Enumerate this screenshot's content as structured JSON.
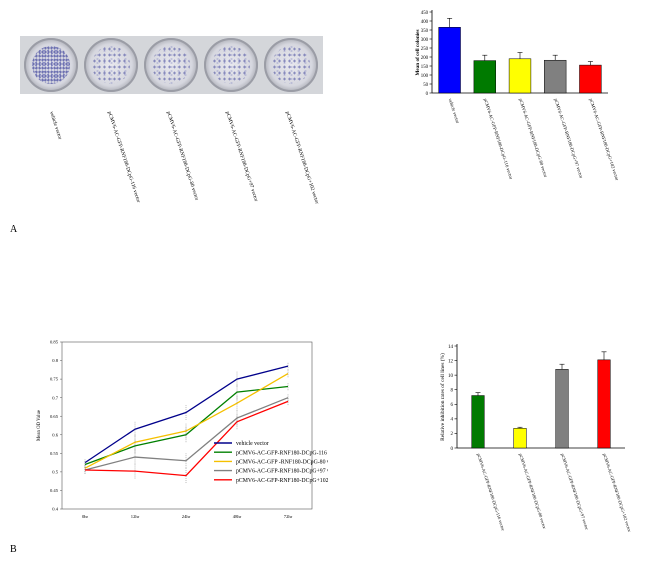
{
  "panel_labels": {
    "a": "A",
    "b": "B"
  },
  "colony_photos": {
    "count": 5,
    "labels": [
      "vehicle vector",
      "pCMV6-AC-GFP-RNF180-DCpG-116 vector",
      "pCMV6-AC-GFP-RNF180-DCpG-80 vector",
      "pCMV6-AC-GFP-RNF180-DCpG+97 vector",
      "pCMV6-AC-GFP-RNF180-DCpG+102 vector"
    ]
  },
  "chart_data": [
    {
      "id": "colonies",
      "type": "bar",
      "ylabel": "Mean of cell colonies",
      "ylim": [
        0,
        450
      ],
      "yticks": [
        0,
        50,
        100,
        150,
        200,
        250,
        300,
        350,
        400,
        450
      ],
      "categories": [
        "vehicle vector",
        "pCMV6-AC-GFP-RNF180-DCpG-116 vector",
        "pCMV6-AC-GFP-RNF180-DCpG-80 vector",
        "pCMV6-AC-GFP-RNF180-DCpG+97 vector",
        "pCMV6-AC-GFP-RNF180-DCpG+102 vector"
      ],
      "values": [
        365,
        180,
        190,
        182,
        155
      ],
      "errors": [
        50,
        30,
        35,
        28,
        20
      ],
      "colors": [
        "#0000ff",
        "#007a00",
        "#ffff00",
        "#808080",
        "#ff0000"
      ]
    },
    {
      "id": "od",
      "type": "line",
      "ylabel": "Mean OD Value",
      "xlabels": [
        "0hr",
        "12hr",
        "24hr",
        "48hr",
        "72hr"
      ],
      "ylim": [
        0.4,
        0.85
      ],
      "yticks": [
        "0.4",
        "0.45",
        "0.5",
        "0.55",
        "0.6",
        "0.65",
        "0.7",
        "0.75",
        "0.8",
        "0.85"
      ],
      "series": [
        {
          "name": "vehicle vector",
          "color": "#00008b",
          "values": [
            0.525,
            0.615,
            0.66,
            0.75,
            0.785
          ]
        },
        {
          "name": "pCMV6-AC-GFP-RNF180-DCpG-116 vector",
          "color": "#008000",
          "values": [
            0.52,
            0.57,
            0.6,
            0.715,
            0.73
          ]
        },
        {
          "name": "pCMV6-AC-GFP -RNF180-DCpG-80 vector",
          "color": "#f5c000",
          "values": [
            0.51,
            0.58,
            0.61,
            0.685,
            0.765
          ]
        },
        {
          "name": "pCMV6-AC-GFP-RNF180-DCpG+97 vector",
          "color": "#808080",
          "values": [
            0.505,
            0.54,
            0.53,
            0.645,
            0.7
          ]
        },
        {
          "name": "pCMV6-AC-GFP-RNF180-DCpG+102 vector",
          "color": "#ff0000",
          "values": [
            0.505,
            0.502,
            0.49,
            0.635,
            0.69
          ]
        }
      ],
      "errors": [
        0.01,
        0.02,
        0.02,
        0.02,
        0.01
      ]
    },
    {
      "id": "inhibition",
      "type": "bar",
      "ylabel": "Relative inhibition rates of cell lines (%)",
      "ylim": [
        0,
        14
      ],
      "yticks": [
        0,
        2,
        4,
        6,
        8,
        10,
        12,
        14
      ],
      "categories": [
        "pCMV6-AC-GFP-RNF180-DCpG-116 vector",
        "pCMV6-AC-GFP-RNF180-DCpG-80 vector",
        "pCMV6-AC-GFP-RNF180-DCpG+97 vector",
        "pCMV6-AC-GFP-RNF180-DCpG+102 vector"
      ],
      "values": [
        7.2,
        2.7,
        10.8,
        12.1
      ],
      "errors": [
        0.4,
        0.15,
        0.7,
        1.1
      ],
      "colors": [
        "#007a00",
        "#ffff00",
        "#808080",
        "#ff0000"
      ]
    }
  ]
}
